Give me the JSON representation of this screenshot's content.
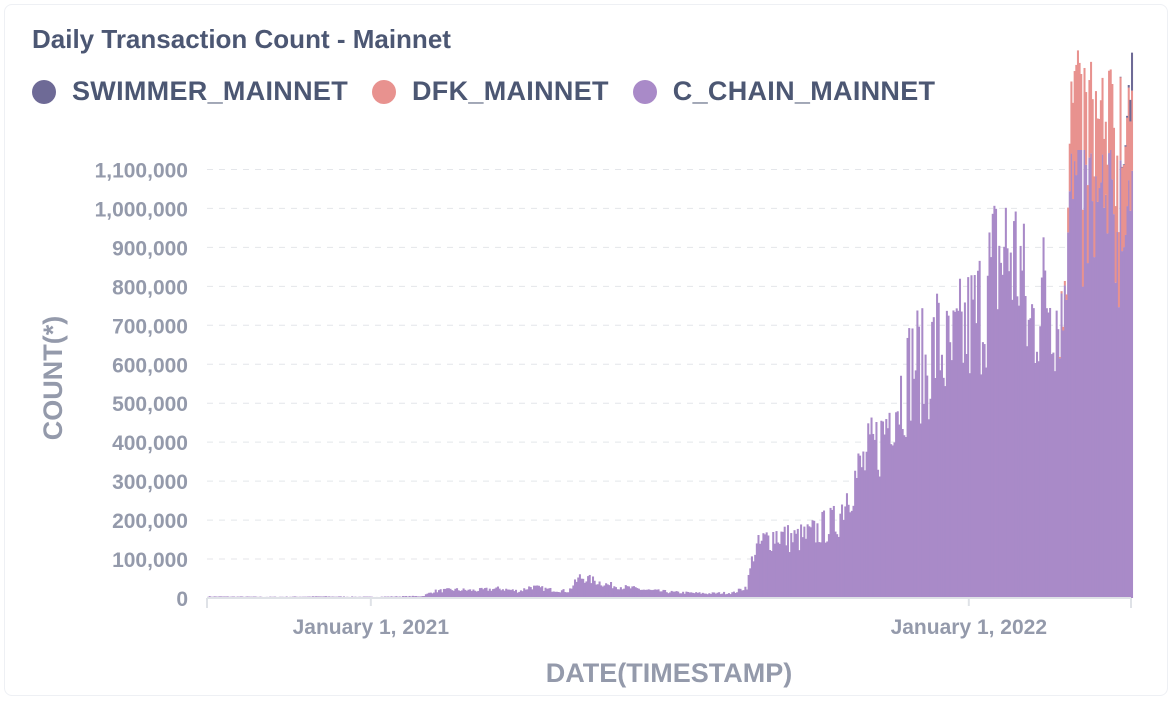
{
  "card": {
    "title": "Daily Transaction Count - Mainnet"
  },
  "chart_data": {
    "type": "bar",
    "title": "Daily Transaction Count - Mainnet",
    "xlabel": "DATE(TIMESTAMP)",
    "ylabel": "COUNT(*)",
    "stacked": true,
    "grid": true,
    "legend_position": "top-left",
    "x_range": [
      "2020-09-23",
      "2022-04-10"
    ],
    "ylim": [
      0,
      1150000
    ],
    "y_ticks": [
      0,
      100000,
      200000,
      300000,
      400000,
      500000,
      600000,
      700000,
      800000,
      900000,
      1000000,
      1100000
    ],
    "y_tick_labels": [
      "0",
      "100,000",
      "200,000",
      "300,000",
      "400,000",
      "500,000",
      "600,000",
      "700,000",
      "800,000",
      "900,000",
      "1,000,000",
      "1,100,000"
    ],
    "x_ticks": [
      {
        "date": "2021-01-01",
        "label": "January 1, 2021"
      },
      {
        "date": "2022-01-01",
        "label": "January 1, 2022"
      }
    ],
    "series": [
      {
        "name": "SWIMMER_MAINNET",
        "color": "#6e6a96",
        "points": [
          [
            "2022-04-02",
            0
          ],
          [
            "2022-04-05",
            2000
          ],
          [
            "2022-04-08",
            6000
          ],
          [
            "2022-04-10",
            95000
          ]
        ]
      },
      {
        "name": "DFK_MAINNET",
        "color": "#e8928f",
        "points": [
          [
            "2022-02-24",
            0
          ],
          [
            "2022-03-01",
            15000
          ],
          [
            "2022-03-03",
            120000
          ],
          [
            "2022-03-05",
            230000
          ],
          [
            "2022-03-07",
            270000
          ],
          [
            "2022-03-10",
            215000
          ],
          [
            "2022-03-13",
            185000
          ],
          [
            "2022-03-17",
            240000
          ],
          [
            "2022-03-21",
            195000
          ],
          [
            "2022-03-25",
            185000
          ],
          [
            "2022-03-29",
            225000
          ],
          [
            "2022-04-02",
            190000
          ],
          [
            "2022-04-06",
            230000
          ],
          [
            "2022-04-10",
            210000
          ]
        ]
      },
      {
        "name": "C_CHAIN_MAINNET",
        "color": "#a98ac8",
        "points": [
          [
            "2020-09-23",
            4000
          ],
          [
            "2020-11-01",
            3000
          ],
          [
            "2020-12-01",
            4000
          ],
          [
            "2021-01-01",
            3000
          ],
          [
            "2021-02-01",
            5000
          ],
          [
            "2021-02-08",
            18000
          ],
          [
            "2021-02-20",
            22000
          ],
          [
            "2021-03-05",
            20000
          ],
          [
            "2021-03-20",
            25000
          ],
          [
            "2021-04-01",
            18000
          ],
          [
            "2021-04-08",
            30000
          ],
          [
            "2021-04-20",
            22000
          ],
          [
            "2021-05-01",
            18000
          ],
          [
            "2021-05-08",
            55000
          ],
          [
            "2021-05-15",
            48000
          ],
          [
            "2021-05-25",
            35000
          ],
          [
            "2021-06-05",
            28000
          ],
          [
            "2021-06-20",
            20000
          ],
          [
            "2021-07-05",
            15000
          ],
          [
            "2021-07-25",
            12000
          ],
          [
            "2021-08-10",
            14000
          ],
          [
            "2021-08-18",
            30000
          ],
          [
            "2021-08-22",
            120000
          ],
          [
            "2021-08-28",
            150000
          ],
          [
            "2021-09-05",
            170000
          ],
          [
            "2021-09-15",
            155000
          ],
          [
            "2021-09-25",
            165000
          ],
          [
            "2021-10-05",
            190000
          ],
          [
            "2021-10-12",
            200000
          ],
          [
            "2021-10-18",
            280000
          ],
          [
            "2021-10-25",
            330000
          ],
          [
            "2021-11-01",
            380000
          ],
          [
            "2021-11-08",
            420000
          ],
          [
            "2021-11-15",
            520000
          ],
          [
            "2021-11-22",
            560000
          ],
          [
            "2021-11-28",
            640000
          ],
          [
            "2021-12-05",
            600000
          ],
          [
            "2021-12-12",
            680000
          ],
          [
            "2021-12-20",
            620000
          ],
          [
            "2021-12-28",
            700000
          ],
          [
            "2022-01-05",
            740000
          ],
          [
            "2022-01-12",
            820000
          ],
          [
            "2022-01-18",
            900000
          ],
          [
            "2022-01-25",
            920000
          ],
          [
            "2022-02-01",
            880000
          ],
          [
            "2022-02-06",
            700000
          ],
          [
            "2022-02-12",
            780000
          ],
          [
            "2022-02-18",
            820000
          ],
          [
            "2022-02-24",
            760000
          ],
          [
            "2022-03-01",
            980000
          ],
          [
            "2022-03-05",
            1060000
          ],
          [
            "2022-03-10",
            1040000
          ],
          [
            "2022-03-15",
            1020000
          ],
          [
            "2022-03-20",
            990000
          ],
          [
            "2022-03-25",
            1000000
          ],
          [
            "2022-03-30",
            980000
          ],
          [
            "2022-04-04",
            1020000
          ],
          [
            "2022-04-10",
            1050000
          ]
        ]
      }
    ]
  }
}
